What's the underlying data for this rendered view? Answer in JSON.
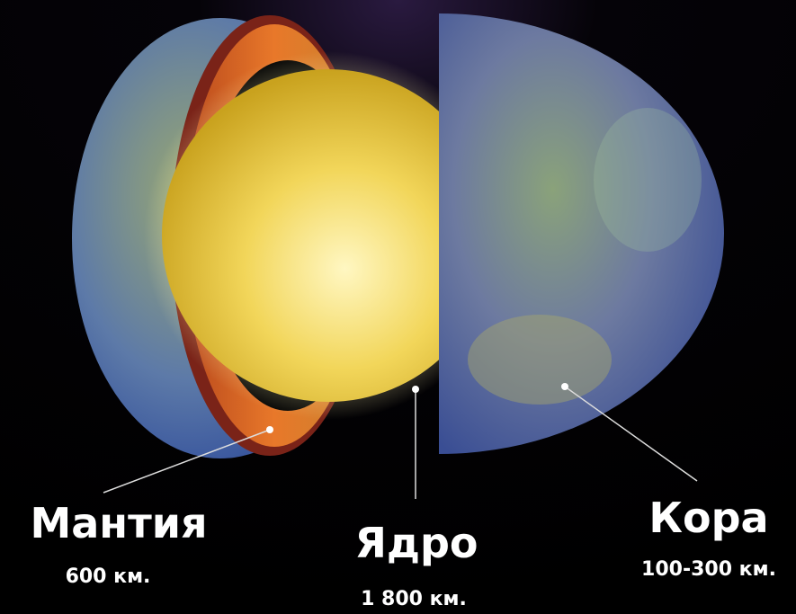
{
  "layers": [
    {
      "name": "Мантия",
      "size": "600 км."
    },
    {
      "name": "Ядро",
      "size": "1 800 км."
    },
    {
      "name": "Кора",
      "size": "100-300 км."
    }
  ]
}
